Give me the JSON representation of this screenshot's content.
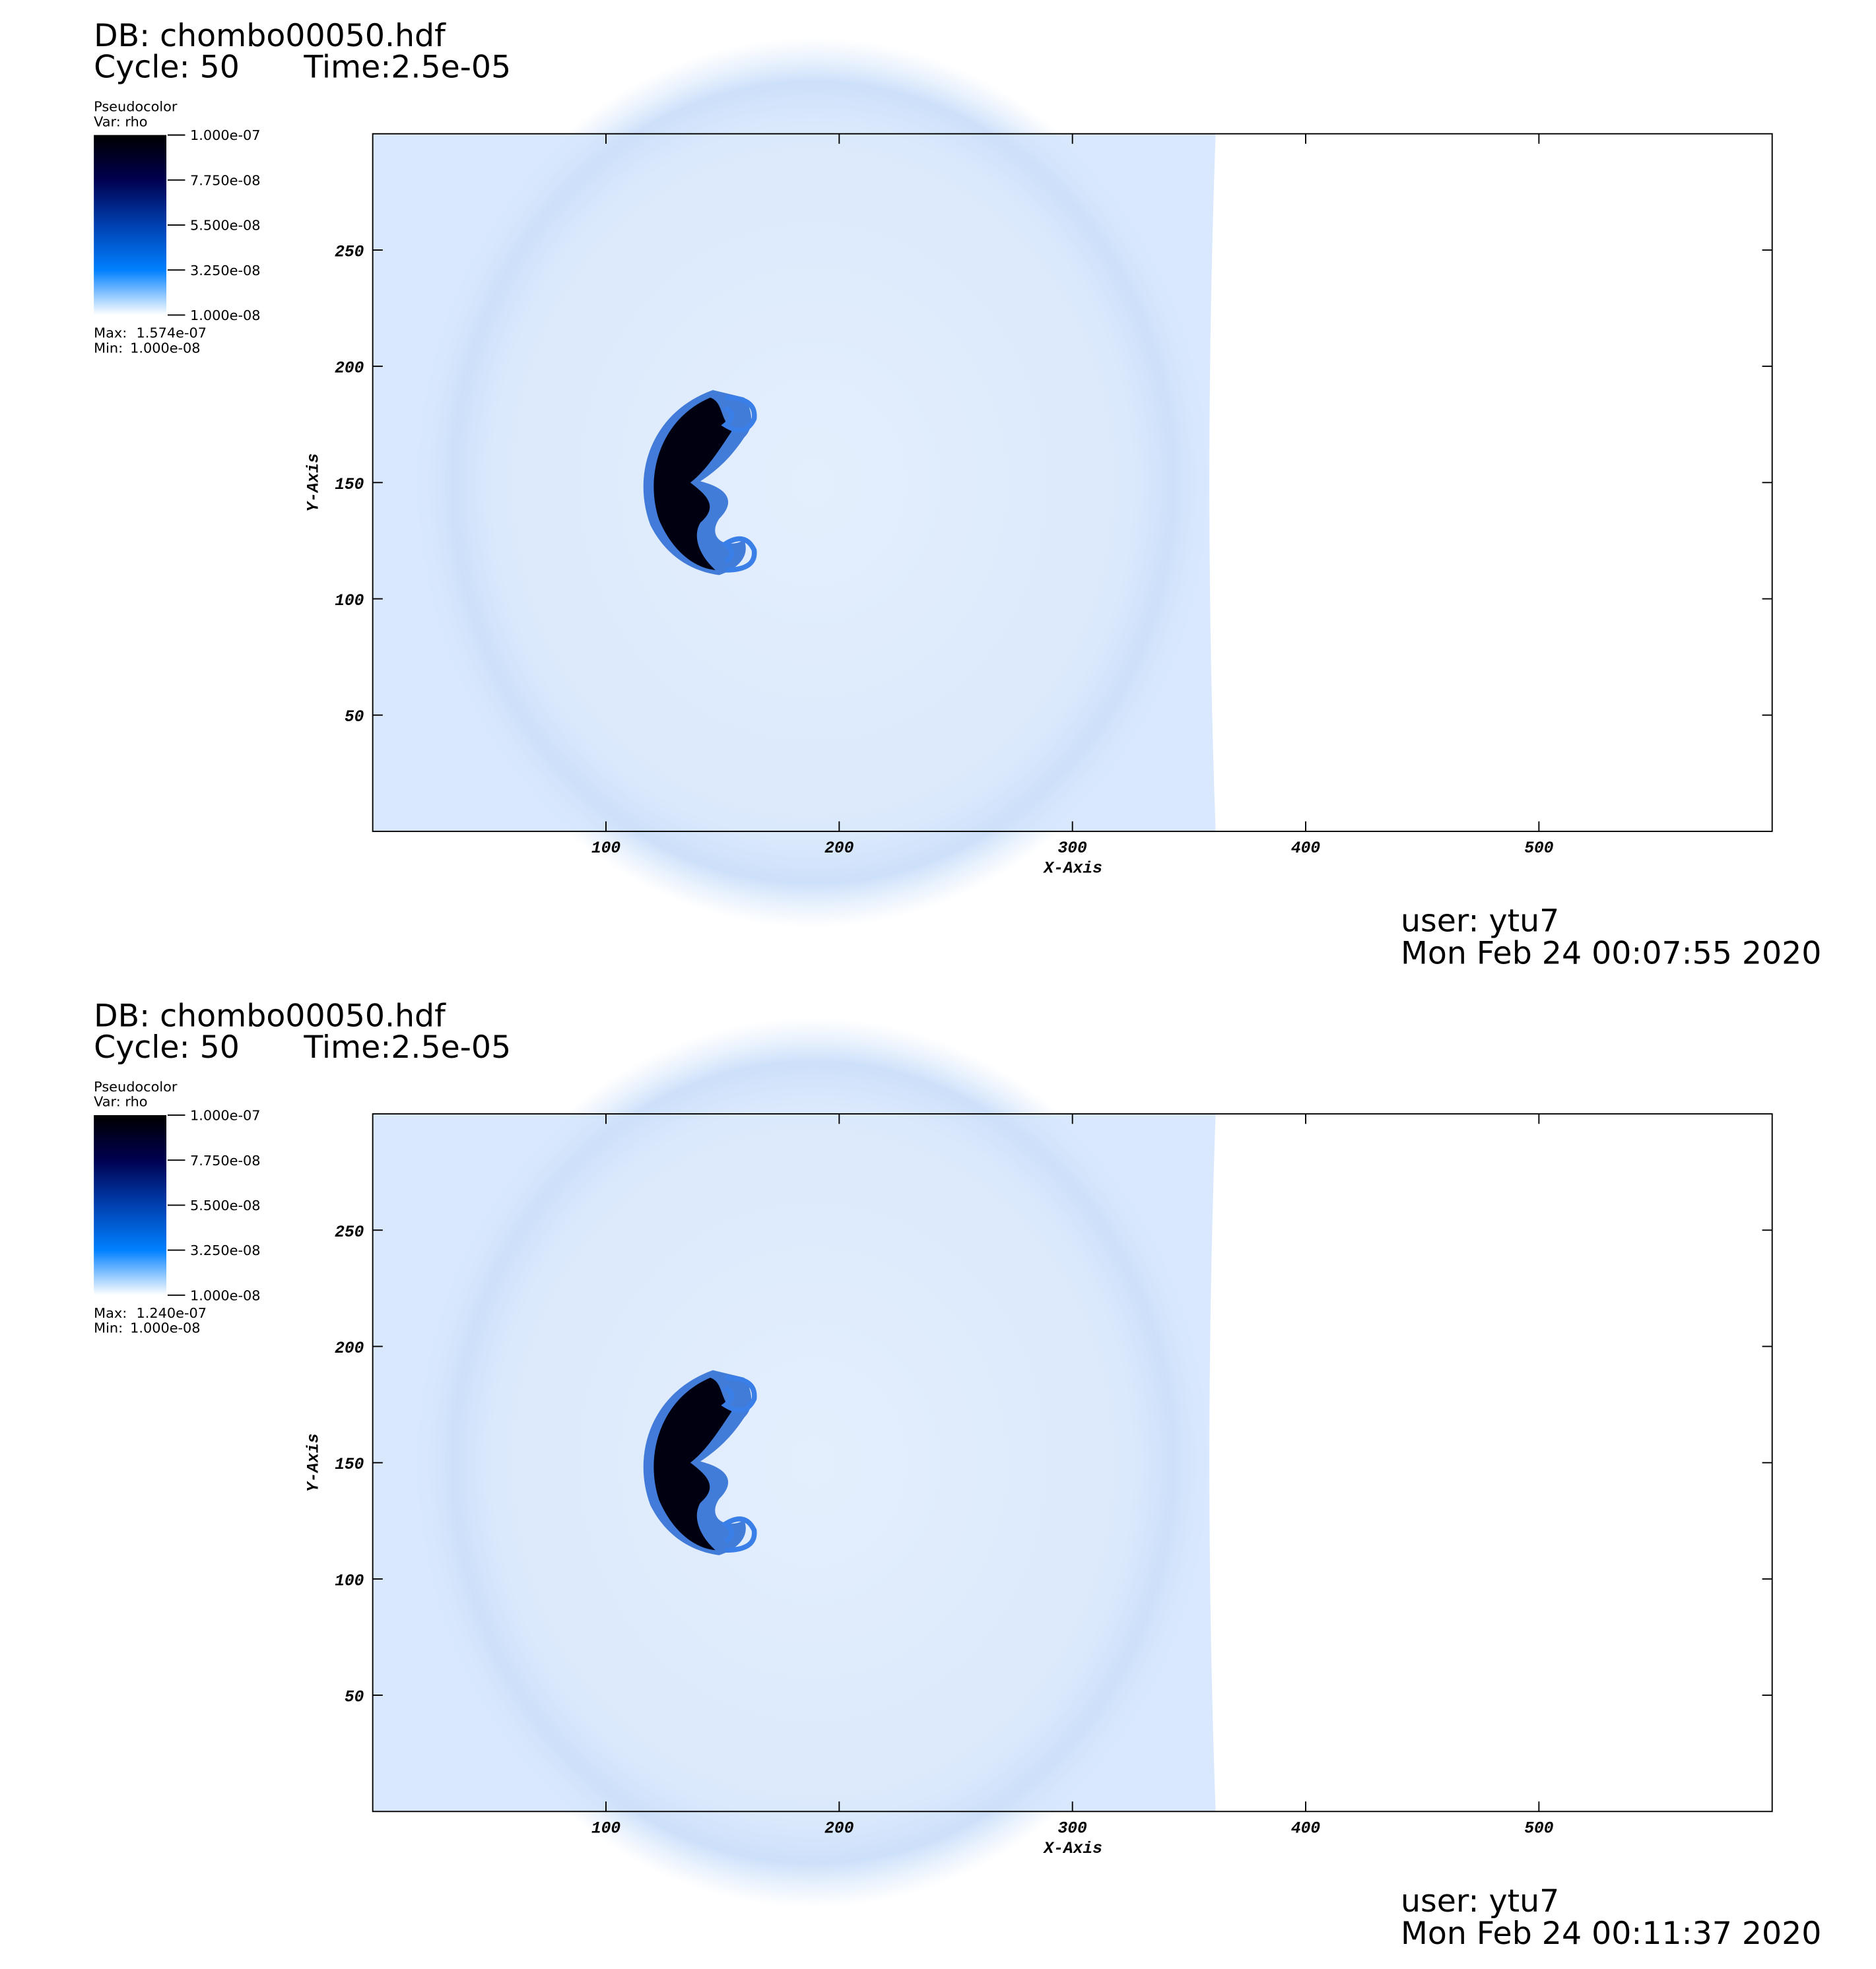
{
  "chart_data": [
    {
      "type": "pseudocolor",
      "title": "DB: chombo00050.hdf",
      "cycle": "Cycle: 50",
      "time": "Time:2.5e-05",
      "legend_title": "Pseudocolor",
      "variable": "Var: rho",
      "colorbar_lim": [
        1e-08,
        1e-07
      ],
      "colorbar_ticks": [
        {
          "value": 1e-07,
          "label": "1.000e-07"
        },
        {
          "value": 7.75e-08,
          "label": "7.750e-08"
        },
        {
          "value": 5.5e-08,
          "label": "5.500e-08"
        },
        {
          "value": 3.25e-08,
          "label": "3.250e-08"
        },
        {
          "value": 1e-08,
          "label": "1.000e-08"
        }
      ],
      "colormap": [
        "#ffffff",
        "#0080ff",
        "#0040b0",
        "#000050",
        "#000000"
      ],
      "max_label": "Max:",
      "max": {
        "value": 1.574e-07,
        "label": "1.574e-07"
      },
      "min_label": "Min:",
      "min": {
        "value": 1e-08,
        "label": "1.000e-08"
      },
      "xlabel": "X-Axis",
      "ylabel": "Y-Axis",
      "xlim": [
        0,
        600
      ],
      "ylim": [
        0,
        300
      ],
      "xticks": [
        100,
        200,
        300,
        400,
        500
      ],
      "yticks": [
        50,
        100,
        150,
        200,
        250
      ],
      "user": "user: ytu7",
      "date": "Mon Feb 24 00:07:55 2020"
    },
    {
      "type": "pseudocolor",
      "title": "DB: chombo00050.hdf",
      "cycle": "Cycle: 50",
      "time": "Time:2.5e-05",
      "legend_title": "Pseudocolor",
      "variable": "Var: rho",
      "colorbar_lim": [
        1e-08,
        1e-07
      ],
      "colorbar_ticks": [
        {
          "value": 1e-07,
          "label": "1.000e-07"
        },
        {
          "value": 7.75e-08,
          "label": "7.750e-08"
        },
        {
          "value": 5.5e-08,
          "label": "5.500e-08"
        },
        {
          "value": 3.25e-08,
          "label": "3.250e-08"
        },
        {
          "value": 1e-08,
          "label": "1.000e-08"
        }
      ],
      "colormap": [
        "#ffffff",
        "#0080ff",
        "#0040b0",
        "#000050",
        "#000000"
      ],
      "max_label": "Max:",
      "max": {
        "value": 1.24e-07,
        "label": "1.240e-07"
      },
      "min_label": "Min:",
      "min": {
        "value": 1e-08,
        "label": "1.000e-08"
      },
      "xlabel": "X-Axis",
      "ylabel": "Y-Axis",
      "xlim": [
        0,
        600
      ],
      "ylim": [
        0,
        300
      ],
      "xticks": [
        100,
        200,
        300,
        400,
        500
      ],
      "yticks": [
        50,
        100,
        150,
        200,
        250
      ],
      "user": "user: ytu7",
      "date": "Mon Feb 24 00:11:37 2020"
    }
  ]
}
